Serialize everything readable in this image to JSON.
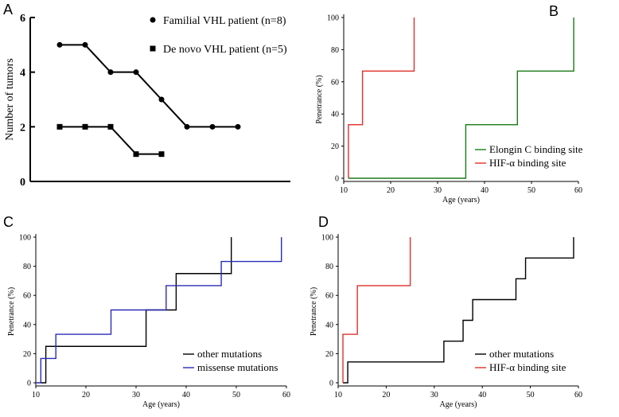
{
  "chart_data": [
    {
      "panel": "A",
      "type": "line",
      "title": "",
      "xlabel": "",
      "ylabel": "Number of tumors",
      "ylim": [
        0,
        6
      ],
      "yticks": [
        "0",
        "2",
        "4",
        "6"
      ],
      "series": [
        {
          "name": "Familial VHL patient (n=8)",
          "marker": "circle",
          "color": "#000000",
          "values": [
            5,
            5,
            4,
            4,
            3,
            2,
            2,
            2
          ]
        },
        {
          "name": "De novo VHL patient (n=5)",
          "marker": "square",
          "color": "#000000",
          "values": [
            2,
            2,
            2,
            1,
            1
          ]
        }
      ]
    },
    {
      "panel": "B",
      "type": "line",
      "xlabel": "Age (years)",
      "ylabel": "Penetrance (%)",
      "xlim": [
        10,
        60
      ],
      "ylim": [
        0,
        100
      ],
      "xticks": [
        "10",
        "20",
        "30",
        "40",
        "50",
        "60"
      ],
      "yticks": [
        "0",
        "20",
        "40",
        "60",
        "80",
        "100"
      ],
      "series": [
        {
          "name": "Elongin C binding site",
          "color": "#1a7a1a",
          "points": [
            [
              11,
              0
            ],
            [
              36,
              0
            ],
            [
              36,
              33.3
            ],
            [
              47,
              33.3
            ],
            [
              47,
              66.7
            ],
            [
              59,
              66.7
            ],
            [
              59,
              100
            ]
          ]
        },
        {
          "name": "HIF-α binding site",
          "color": "#e0302a",
          "points": [
            [
              11,
              0
            ],
            [
              11,
              33.3
            ],
            [
              14,
              33.3
            ],
            [
              14,
              66.7
            ],
            [
              25,
              66.7
            ],
            [
              25,
              100
            ]
          ]
        }
      ]
    },
    {
      "panel": "C",
      "type": "line",
      "xlabel": "Age (years)",
      "ylabel": "Penetrance (%)",
      "xlim": [
        10,
        60
      ],
      "ylim": [
        0,
        100
      ],
      "xticks": [
        "10",
        "20",
        "30",
        "40",
        "50",
        "60"
      ],
      "yticks": [
        "0",
        "20",
        "40",
        "60",
        "80",
        "100"
      ],
      "series": [
        {
          "name": "other mutations",
          "color": "#000000",
          "points": [
            [
              11,
              0
            ],
            [
              12,
              0
            ],
            [
              12,
              25
            ],
            [
              32,
              25
            ],
            [
              32,
              50
            ],
            [
              38,
              50
            ],
            [
              38,
              75
            ],
            [
              49,
              75
            ],
            [
              49,
              100
            ]
          ]
        },
        {
          "name": "missense mutations",
          "color": "#2b2bb8",
          "points": [
            [
              10,
              0
            ],
            [
              11,
              0
            ],
            [
              11,
              16.7
            ],
            [
              14,
              16.7
            ],
            [
              14,
              33.3
            ],
            [
              25,
              33.3
            ],
            [
              25,
              50
            ],
            [
              36,
              50
            ],
            [
              36,
              66.7
            ],
            [
              47,
              66.7
            ],
            [
              47,
              83.3
            ],
            [
              59,
              83.3
            ],
            [
              59,
              100
            ]
          ]
        }
      ]
    },
    {
      "panel": "D",
      "type": "line",
      "xlabel": "Age (years)",
      "ylabel": "Penetrance (%)",
      "xlim": [
        10,
        60
      ],
      "ylim": [
        0,
        100
      ],
      "xticks": [
        "10",
        "20",
        "30",
        "40",
        "50",
        "60"
      ],
      "yticks": [
        "0",
        "20",
        "40",
        "60",
        "80",
        "100"
      ],
      "series": [
        {
          "name": "other mutations",
          "color": "#000000",
          "points": [
            [
              11,
              0
            ],
            [
              12,
              0
            ],
            [
              12,
              14.3
            ],
            [
              32,
              14.3
            ],
            [
              32,
              28.6
            ],
            [
              36,
              28.6
            ],
            [
              36,
              42.9
            ],
            [
              38,
              42.9
            ],
            [
              38,
              57.1
            ],
            [
              47,
              57.1
            ],
            [
              47,
              71.4
            ],
            [
              49,
              71.4
            ],
            [
              49,
              85.7
            ],
            [
              59,
              85.7
            ],
            [
              59,
              100
            ]
          ]
        },
        {
          "name": "HIF-α binding site",
          "color": "#e0302a",
          "points": [
            [
              11,
              0
            ],
            [
              11,
              33.3
            ],
            [
              14,
              33.3
            ],
            [
              14,
              66.7
            ],
            [
              25,
              66.7
            ],
            [
              25,
              100
            ]
          ]
        }
      ]
    }
  ]
}
